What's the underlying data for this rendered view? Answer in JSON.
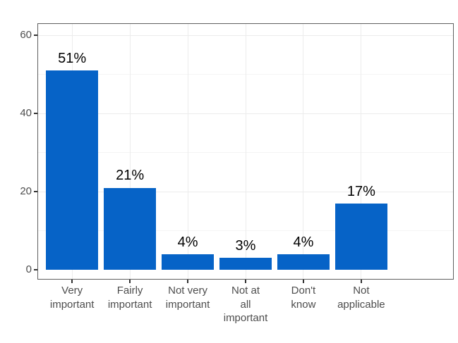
{
  "colors": {
    "bar": "#0663C7",
    "panel_border": "#5F5F5F",
    "grid_major": "#ECECEC",
    "grid_minor": "#F4F4F4",
    "tick_mark": "#333333",
    "axis_text": "#4D4D4D",
    "value_text": "#000000",
    "background": "#FFFFFF"
  },
  "chart_data": {
    "type": "bar",
    "title": "",
    "xlabel": "",
    "ylabel": "",
    "categories": [
      "Very\nimportant",
      "Fairly\nimportant",
      "Not very\nimportant",
      "Not at\nall\nimportant",
      "Don't\nknow",
      "Not\napplicable"
    ],
    "values": [
      51,
      21,
      4,
      3,
      4,
      17
    ],
    "bar_labels": [
      "51%",
      "21%",
      "4%",
      "3%",
      "4%",
      "17%"
    ],
    "yticks": [
      0,
      20,
      40,
      60
    ],
    "ytick_labels": [
      "0",
      "20",
      "40",
      "60"
    ],
    "minor_yticks": [
      10,
      30,
      50
    ],
    "ylim": [
      0,
      60
    ],
    "grid": "horizontal major+minor, vertical major at category centers",
    "legend": "none"
  }
}
